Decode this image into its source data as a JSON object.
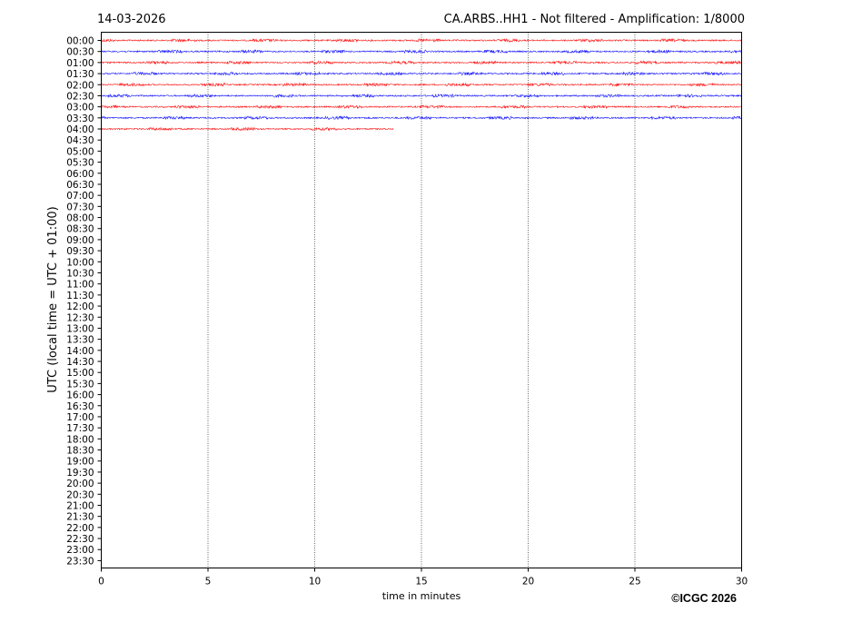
{
  "header": {
    "date": "14-03-2026",
    "title": "CA.ARBS..HH1 - Not filtered - Amplification: 1/8000"
  },
  "footer": {
    "copyright": "©ICGC 2026"
  },
  "chart_data": {
    "type": "line",
    "title": "CA.ARBS..HH1 - Not filtered - Amplification: 1/8000",
    "xlabel": "time in minutes",
    "ylabel": "UTC (local time = UTC + 01:00)",
    "xlim": [
      0,
      30
    ],
    "xticks": [
      "0",
      "5",
      "10",
      "15",
      "20",
      "25",
      "30"
    ],
    "yticks": [
      "00:00",
      "00:30",
      "01:00",
      "01:30",
      "02:00",
      "02:30",
      "03:00",
      "03:30",
      "04:00",
      "04:30",
      "05:00",
      "05:30",
      "06:00",
      "06:30",
      "07:00",
      "07:30",
      "08:00",
      "08:30",
      "09:00",
      "09:30",
      "10:00",
      "10:30",
      "11:00",
      "11:30",
      "12:00",
      "12:30",
      "13:00",
      "13:30",
      "14:00",
      "14:30",
      "15:00",
      "15:30",
      "16:00",
      "16:30",
      "17:00",
      "17:30",
      "18:00",
      "18:30",
      "19:00",
      "19:30",
      "20:00",
      "20:30",
      "21:00",
      "21:30",
      "22:00",
      "22:30",
      "23:00",
      "23:30"
    ],
    "grid": "vertical dotted lines at x ticks",
    "series_colors": [
      "#ff0000",
      "#0000ff"
    ],
    "traces": [
      {
        "row": "00:00",
        "start_min": 0,
        "end_min": 30,
        "color": "#ff0000"
      },
      {
        "row": "00:30",
        "start_min": 0,
        "end_min": 30,
        "color": "#0000ff"
      },
      {
        "row": "01:00",
        "start_min": 0,
        "end_min": 30,
        "color": "#ff0000"
      },
      {
        "row": "01:30",
        "start_min": 0,
        "end_min": 30,
        "color": "#0000ff"
      },
      {
        "row": "02:00",
        "start_min": 0,
        "end_min": 30,
        "color": "#ff0000"
      },
      {
        "row": "02:30",
        "start_min": 0,
        "end_min": 30,
        "color": "#0000ff"
      },
      {
        "row": "03:00",
        "start_min": 0,
        "end_min": 30,
        "color": "#ff0000"
      },
      {
        "row": "03:30",
        "start_min": 0,
        "end_min": 30,
        "color": "#0000ff"
      },
      {
        "row": "04:00",
        "start_min": 0,
        "end_min": 13.7,
        "color": "#ff0000"
      }
    ]
  }
}
